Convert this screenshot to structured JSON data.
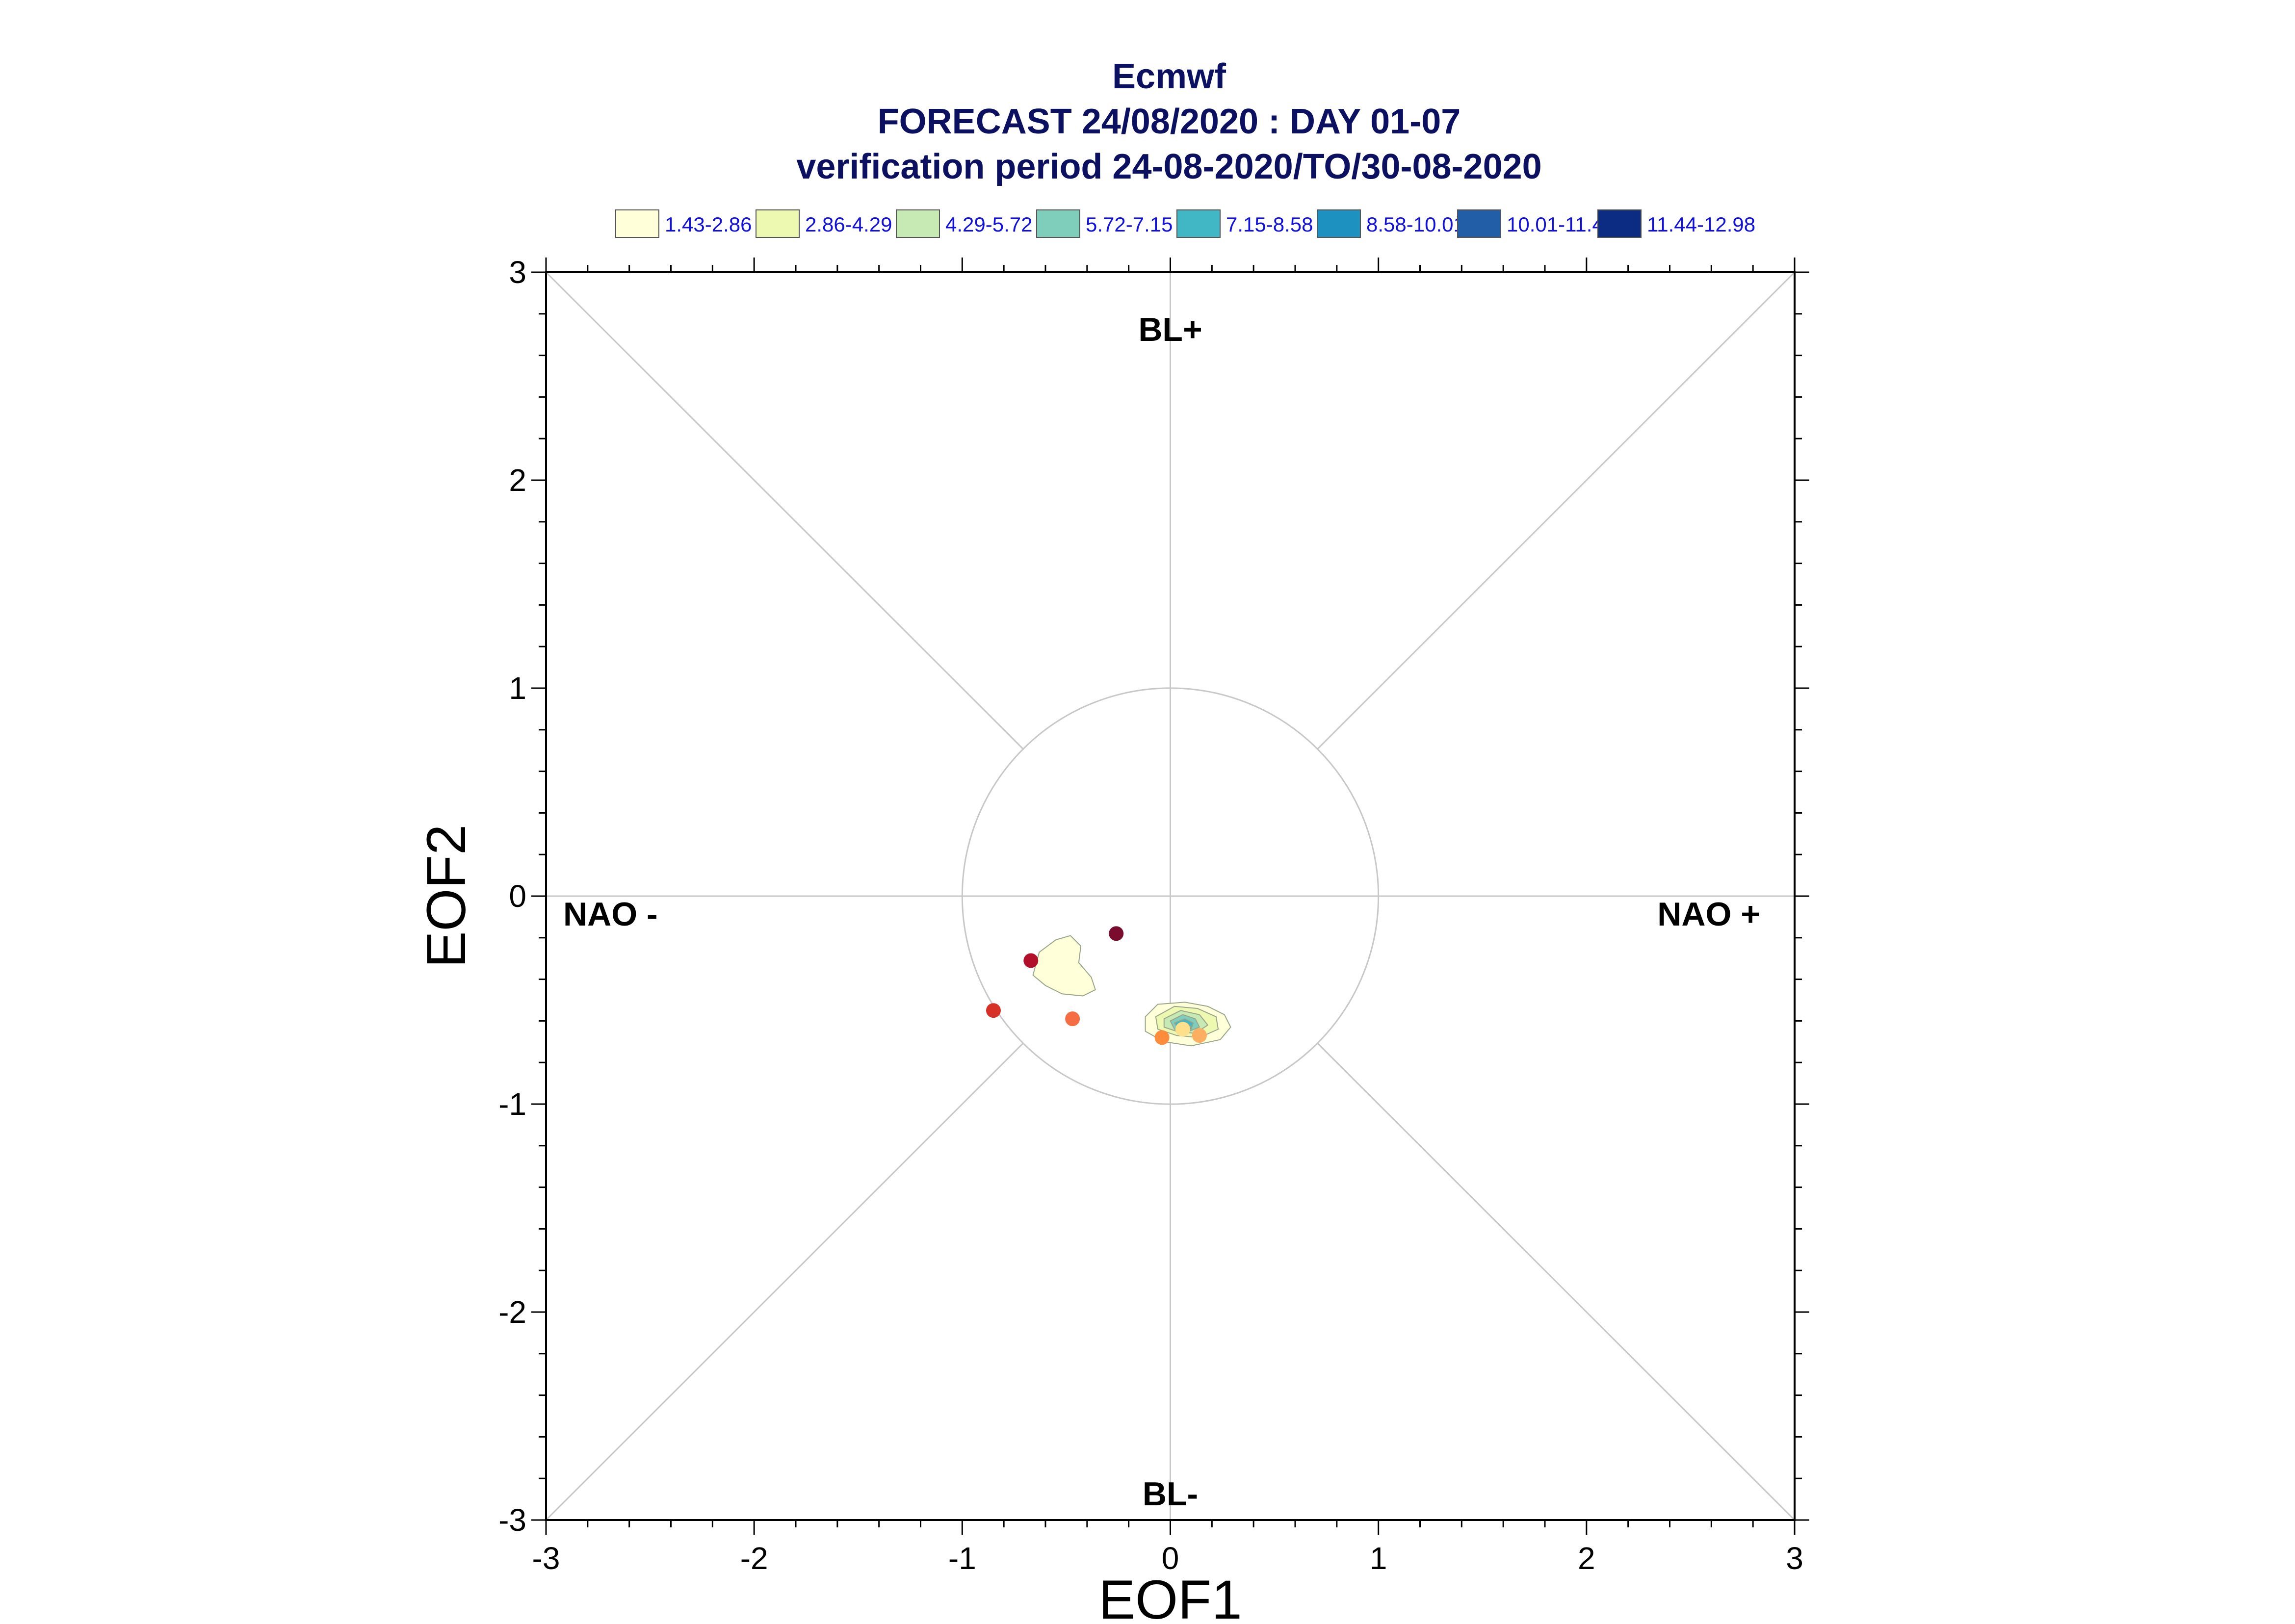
{
  "chart_data": {
    "type": "scatter",
    "title": "Ecmwf",
    "subtitle": "FORECAST 24/08/2020 : DAY 01-07",
    "subtitle2": "verification period 24-08-2020/TO/30-08-2020",
    "xlabel": "EOF1",
    "ylabel": "EOF2",
    "xlim": [
      -3,
      3
    ],
    "ylim": [
      -3,
      3
    ],
    "x_ticks": [
      "-3",
      "-2",
      "-1",
      "0",
      "1",
      "2",
      "3"
    ],
    "y_ticks": [
      "3",
      "2",
      "1",
      "0",
      "-1",
      "-2",
      "-3"
    ],
    "regime_labels": {
      "top": "BL+",
      "bottom": "BL-",
      "left": "NAO -",
      "right": "NAO +"
    },
    "unit_circle_radius": 1,
    "legend": [
      {
        "label": "1.43-2.86",
        "color": "#ffffd9"
      },
      {
        "label": "2.86-4.29",
        "color": "#edf8b1"
      },
      {
        "label": "4.29-5.72",
        "color": "#c7e9b4"
      },
      {
        "label": "5.72-7.15",
        "color": "#7fcdbb"
      },
      {
        "label": "7.15-8.58",
        "color": "#41b6c4"
      },
      {
        "label": "8.58-10.01",
        "color": "#1d91c0"
      },
      {
        "label": "10.01-11.44",
        "color": "#225ea8"
      },
      {
        "label": "11.44-12.98",
        "color": "#0c2c84"
      }
    ],
    "points": [
      {
        "x": -0.26,
        "y": -0.18,
        "color": "#7a0c2e"
      },
      {
        "x": -0.67,
        "y": -0.31,
        "color": "#b2102a"
      },
      {
        "x": -0.85,
        "y": -0.55,
        "color": "#d73027"
      },
      {
        "x": -0.47,
        "y": -0.59,
        "color": "#f46d43"
      },
      {
        "x": -0.04,
        "y": -0.68,
        "color": "#fd8d3c"
      },
      {
        "x": 0.14,
        "y": -0.67,
        "color": "#fdae61"
      },
      {
        "x": 0.06,
        "y": -0.64,
        "color": "#fee08b"
      }
    ],
    "density_contours": [
      {
        "level": "1.43-2.86",
        "color": "#ffffd9",
        "points": [
          [
            -0.63,
            -0.27
          ],
          [
            -0.55,
            -0.21
          ],
          [
            -0.48,
            -0.19
          ],
          [
            -0.43,
            -0.24
          ],
          [
            -0.44,
            -0.32
          ],
          [
            -0.38,
            -0.39
          ],
          [
            -0.36,
            -0.45
          ],
          [
            -0.42,
            -0.48
          ],
          [
            -0.52,
            -0.47
          ],
          [
            -0.6,
            -0.43
          ],
          [
            -0.66,
            -0.38
          ]
        ]
      },
      {
        "level": "1.43-2.86",
        "color": "#ffffd9",
        "points": [
          [
            -0.12,
            -0.58
          ],
          [
            -0.06,
            -0.52
          ],
          [
            0.07,
            -0.51
          ],
          [
            0.18,
            -0.53
          ],
          [
            0.26,
            -0.57
          ],
          [
            0.29,
            -0.63
          ],
          [
            0.24,
            -0.69
          ],
          [
            0.1,
            -0.72
          ],
          [
            -0.03,
            -0.7
          ],
          [
            -0.12,
            -0.65
          ]
        ]
      },
      {
        "level": "2.86-4.29",
        "color": "#edf8b1",
        "points": [
          [
            -0.07,
            -0.58
          ],
          [
            0.02,
            -0.53
          ],
          [
            0.13,
            -0.54
          ],
          [
            0.22,
            -0.58
          ],
          [
            0.23,
            -0.64
          ],
          [
            0.14,
            -0.68
          ],
          [
            0.03,
            -0.67
          ],
          [
            -0.06,
            -0.64
          ]
        ]
      },
      {
        "level": "4.29-5.72",
        "color": "#c7e9b4",
        "points": [
          [
            -0.03,
            -0.59
          ],
          [
            0.05,
            -0.55
          ],
          [
            0.14,
            -0.57
          ],
          [
            0.18,
            -0.62
          ],
          [
            0.12,
            -0.66
          ],
          [
            0.03,
            -0.65
          ],
          [
            -0.03,
            -0.63
          ]
        ]
      },
      {
        "level": "5.72-7.15",
        "color": "#7fcdbb",
        "points": [
          [
            0.0,
            -0.6
          ],
          [
            0.06,
            -0.57
          ],
          [
            0.12,
            -0.59
          ],
          [
            0.14,
            -0.63
          ],
          [
            0.09,
            -0.65
          ],
          [
            0.02,
            -0.64
          ]
        ]
      },
      {
        "level": "7.15-8.58",
        "color": "#41b6c4",
        "points": [
          [
            0.02,
            -0.61
          ],
          [
            0.07,
            -0.59
          ],
          [
            0.11,
            -0.61
          ],
          [
            0.1,
            -0.64
          ],
          [
            0.04,
            -0.64
          ]
        ]
      },
      {
        "level": "8.58-10.01",
        "color": "#1d91c0",
        "points": [
          [
            0.05,
            -0.62
          ],
          [
            0.08,
            -0.61
          ],
          [
            0.1,
            -0.63
          ],
          [
            0.07,
            -0.645
          ],
          [
            0.05,
            -0.635
          ]
        ]
      },
      {
        "level": "10.01-11.44",
        "color": "#225ea8",
        "points": [
          [
            0.065,
            -0.625
          ],
          [
            0.085,
            -0.62
          ],
          [
            0.09,
            -0.635
          ],
          [
            0.07,
            -0.64
          ]
        ]
      },
      {
        "level": "11.44-12.98",
        "color": "#0c2c84",
        "points": [
          [
            0.072,
            -0.628
          ],
          [
            0.082,
            -0.627
          ],
          [
            0.083,
            -0.635
          ],
          [
            0.073,
            -0.636
          ]
        ]
      }
    ]
  }
}
